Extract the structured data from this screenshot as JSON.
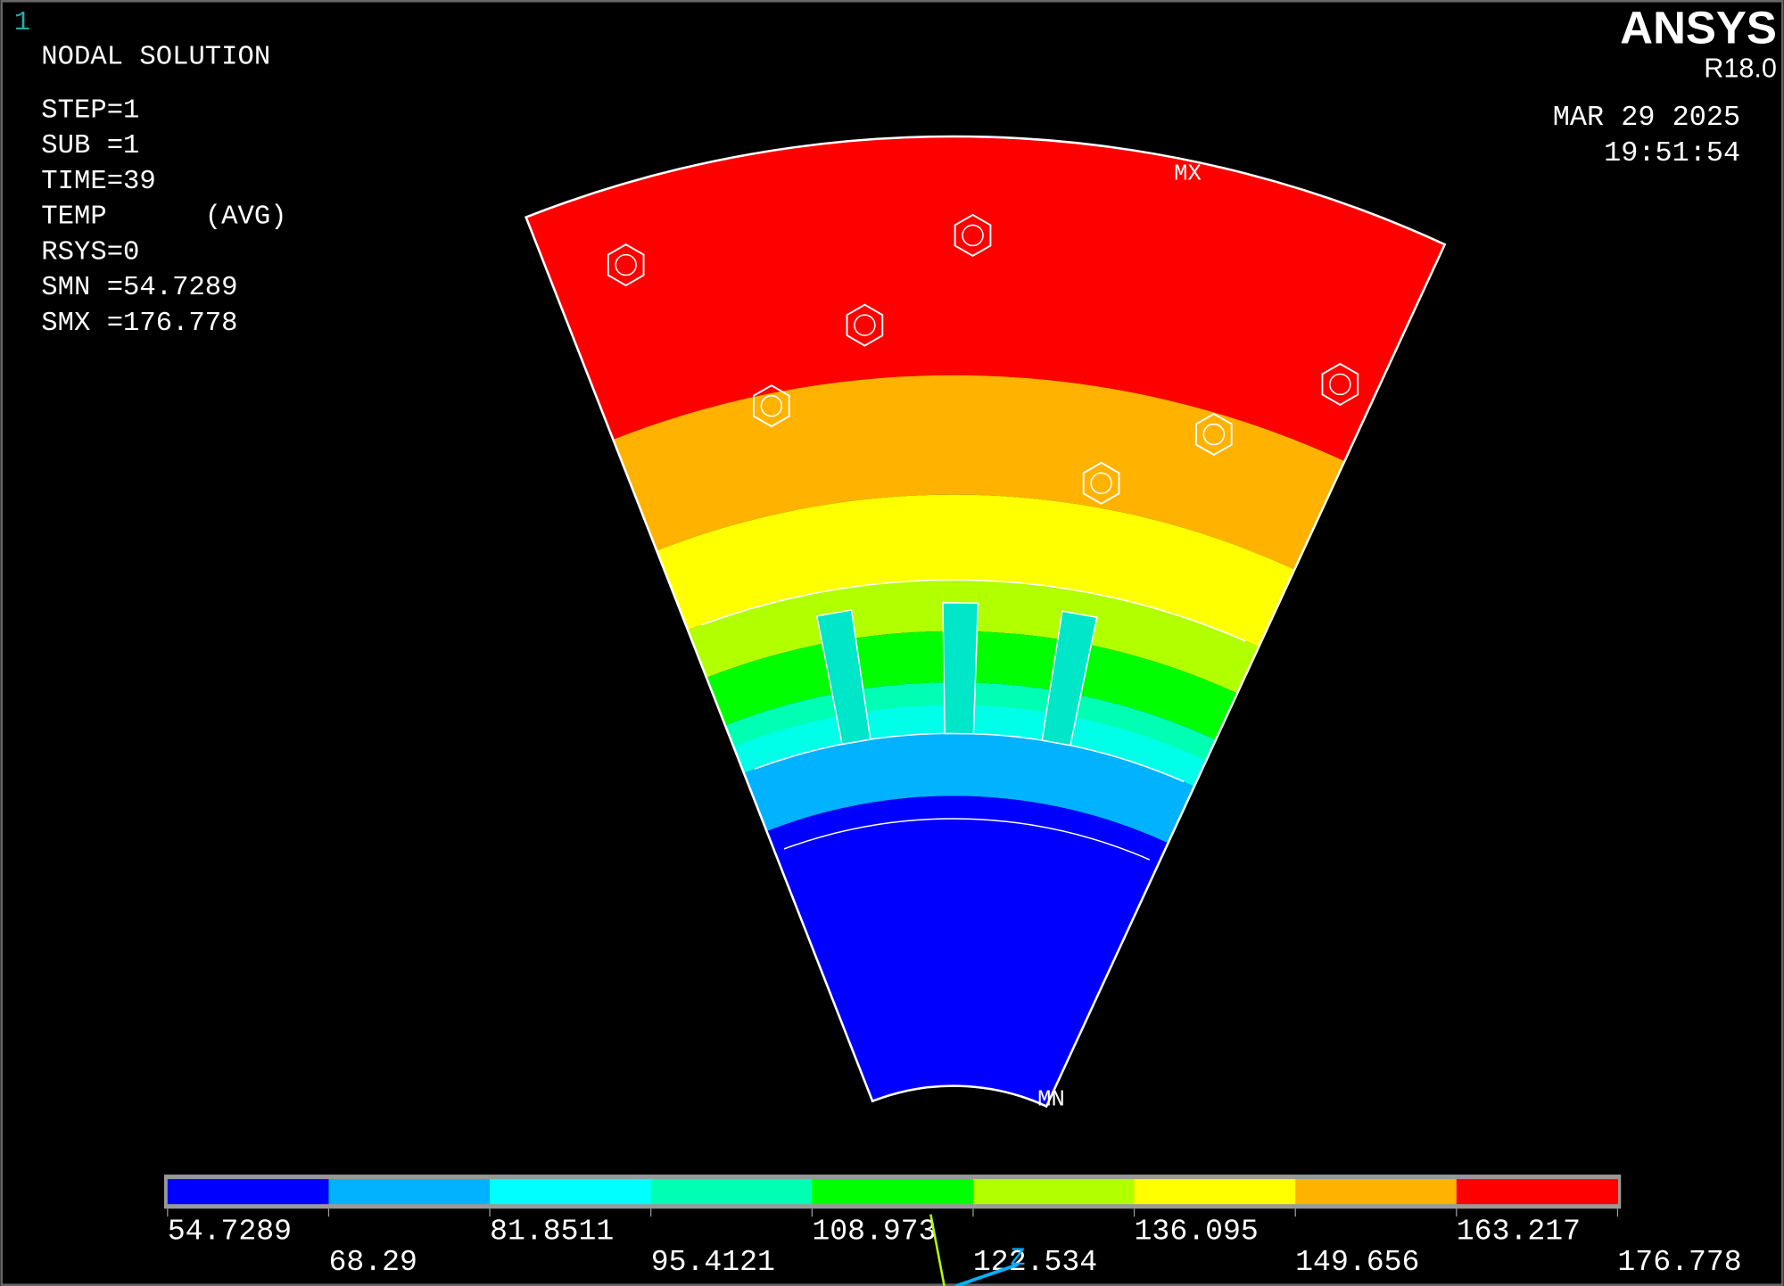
{
  "window_number": "1",
  "title": "NODAL SOLUTION",
  "info": [
    "STEP=1",
    "SUB =1",
    "TIME=39",
    "TEMP      (AVG)",
    "RSYS=0",
    "SMN =54.7289",
    "SMX =176.778"
  ],
  "brand": {
    "name": "ANSYS",
    "version": "R18.0"
  },
  "date": "MAR 29 2025",
  "time": "19:51:54",
  "markers": {
    "max": "MX",
    "min": "MN"
  },
  "triad_label": "Z",
  "legend": {
    "colors": [
      "#0000ff",
      "#00b2ff",
      "#00ffff",
      "#00ffb2",
      "#00ff00",
      "#b2ff00",
      "#ffff00",
      "#ffb200",
      "#ff0000"
    ],
    "labels": [
      "54.7289",
      "68.29",
      "81.8511",
      "95.4121",
      "108.973",
      "122.534",
      "136.095",
      "149.656",
      "163.217",
      "176.778"
    ]
  }
}
